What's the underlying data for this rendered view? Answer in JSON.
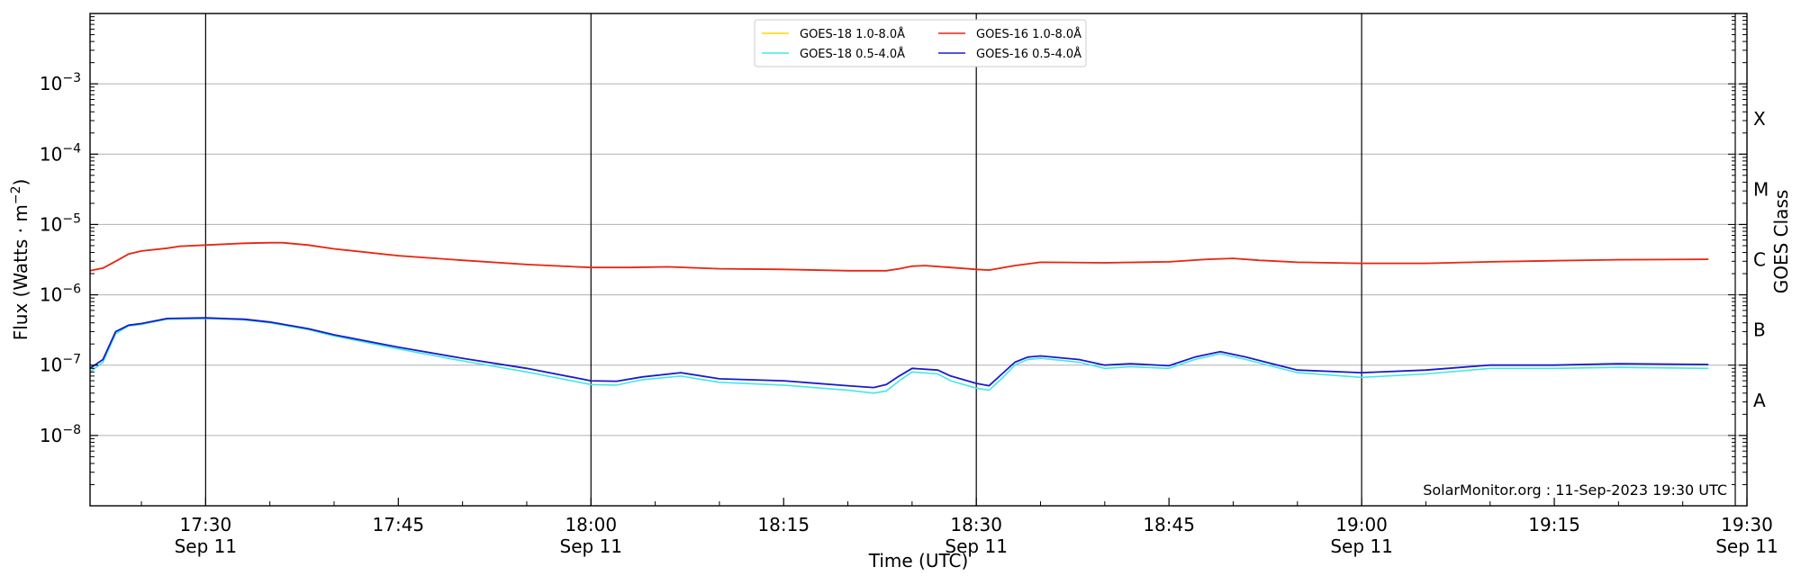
{
  "chart_data": {
    "type": "line",
    "xlabel": "Time (UTC)",
    "ylabel_main": "Flux (Watts · m",
    "ylabel_sup": "−2",
    "ylabel_close": ")",
    "ylabel_right": "GOES Class",
    "yscale": "log",
    "xlim": [
      "17:21",
      "19:30"
    ],
    "ylim_exp": [
      -9,
      -2
    ],
    "grid": "horizontal",
    "legend_position": "top-center",
    "annotation": "SolarMonitor.org : 11-Sep-2023 19:30 UTC",
    "x_ticks": [
      {
        "time": "17:30",
        "label": "17:30",
        "sub": "Sep 11"
      },
      {
        "time": "17:45",
        "label": "17:45",
        "sub": ""
      },
      {
        "time": "18:00",
        "label": "18:00",
        "sub": "Sep 11"
      },
      {
        "time": "18:15",
        "label": "18:15",
        "sub": ""
      },
      {
        "time": "18:30",
        "label": "18:30",
        "sub": "Sep 11"
      },
      {
        "time": "18:45",
        "label": "18:45",
        "sub": ""
      },
      {
        "time": "19:00",
        "label": "19:00",
        "sub": "Sep 11"
      },
      {
        "time": "19:15",
        "label": "19:15",
        "sub": ""
      },
      {
        "time": "19:30",
        "label": "19:30",
        "sub": "Sep 11"
      }
    ],
    "vertical_lines": [
      "17:30",
      "18:00",
      "18:30",
      "19:00"
    ],
    "y_ticks": [
      {
        "exp": -3,
        "base": "10",
        "sup": "−3"
      },
      {
        "exp": -4,
        "base": "10",
        "sup": "−4"
      },
      {
        "exp": -5,
        "base": "10",
        "sup": "−5"
      },
      {
        "exp": -6,
        "base": "10",
        "sup": "−6"
      },
      {
        "exp": -7,
        "base": "10",
        "sup": "−7"
      },
      {
        "exp": -8,
        "base": "10",
        "sup": "−8"
      }
    ],
    "goes_classes": [
      {
        "label": "X",
        "exp": -3.5
      },
      {
        "label": "M",
        "exp": -4.5
      },
      {
        "label": "C",
        "exp": -5.5
      },
      {
        "label": "B",
        "exp": -6.5
      },
      {
        "label": "A",
        "exp": -7.5
      }
    ],
    "series": [
      {
        "name": "GOES-18 1.0-8.0Å",
        "color": "#FFD700",
        "points": [
          [
            "17:21",
            2.2e-06
          ],
          [
            "17:22",
            2.4e-06
          ],
          [
            "17:23",
            3e-06
          ],
          [
            "17:24",
            3.8e-06
          ],
          [
            "17:25",
            4.2e-06
          ],
          [
            "17:27",
            4.6e-06
          ],
          [
            "17:28",
            4.9e-06
          ],
          [
            "17:30",
            5.1e-06
          ],
          [
            "17:33",
            5.4e-06
          ],
          [
            "17:35",
            5.5e-06
          ],
          [
            "17:36",
            5.5e-06
          ],
          [
            "17:38",
            5.1e-06
          ],
          [
            "17:40",
            4.5e-06
          ],
          [
            "17:45",
            3.6e-06
          ],
          [
            "17:50",
            3.1e-06
          ],
          [
            "17:55",
            2.7e-06
          ],
          [
            "18:00",
            2.45e-06
          ],
          [
            "18:03",
            2.45e-06
          ],
          [
            "18:06",
            2.5e-06
          ],
          [
            "18:10",
            2.35e-06
          ],
          [
            "18:15",
            2.3e-06
          ],
          [
            "18:20",
            2.2e-06
          ],
          [
            "18:23",
            2.2e-06
          ],
          [
            "18:24",
            2.35e-06
          ],
          [
            "18:25",
            2.55e-06
          ],
          [
            "18:26",
            2.6e-06
          ],
          [
            "18:28",
            2.45e-06
          ],
          [
            "18:30",
            2.3e-06
          ],
          [
            "18:31",
            2.25e-06
          ],
          [
            "18:33",
            2.6e-06
          ],
          [
            "18:35",
            2.9e-06
          ],
          [
            "18:40",
            2.85e-06
          ],
          [
            "18:45",
            2.95e-06
          ],
          [
            "18:48",
            3.2e-06
          ],
          [
            "18:50",
            3.3e-06
          ],
          [
            "18:52",
            3.1e-06
          ],
          [
            "18:55",
            2.9e-06
          ],
          [
            "19:00",
            2.8e-06
          ],
          [
            "19:05",
            2.8e-06
          ],
          [
            "19:10",
            2.95e-06
          ],
          [
            "19:15",
            3.05e-06
          ],
          [
            "19:20",
            3.15e-06
          ],
          [
            "19:27",
            3.2e-06
          ]
        ]
      },
      {
        "name": "GOES-16 1.0-8.0Å",
        "color": "#E8251B",
        "points": [
          [
            "17:21",
            2.2e-06
          ],
          [
            "17:22",
            2.4e-06
          ],
          [
            "17:23",
            3e-06
          ],
          [
            "17:24",
            3.8e-06
          ],
          [
            "17:25",
            4.2e-06
          ],
          [
            "17:27",
            4.6e-06
          ],
          [
            "17:28",
            4.9e-06
          ],
          [
            "17:30",
            5.1e-06
          ],
          [
            "17:33",
            5.4e-06
          ],
          [
            "17:35",
            5.5e-06
          ],
          [
            "17:36",
            5.5e-06
          ],
          [
            "17:38",
            5.1e-06
          ],
          [
            "17:40",
            4.5e-06
          ],
          [
            "17:45",
            3.6e-06
          ],
          [
            "17:50",
            3.1e-06
          ],
          [
            "17:55",
            2.7e-06
          ],
          [
            "18:00",
            2.45e-06
          ],
          [
            "18:03",
            2.45e-06
          ],
          [
            "18:06",
            2.5e-06
          ],
          [
            "18:10",
            2.35e-06
          ],
          [
            "18:15",
            2.3e-06
          ],
          [
            "18:20",
            2.2e-06
          ],
          [
            "18:23",
            2.2e-06
          ],
          [
            "18:24",
            2.35e-06
          ],
          [
            "18:25",
            2.55e-06
          ],
          [
            "18:26",
            2.6e-06
          ],
          [
            "18:28",
            2.45e-06
          ],
          [
            "18:30",
            2.3e-06
          ],
          [
            "18:31",
            2.25e-06
          ],
          [
            "18:33",
            2.6e-06
          ],
          [
            "18:35",
            2.9e-06
          ],
          [
            "18:40",
            2.85e-06
          ],
          [
            "18:45",
            2.95e-06
          ],
          [
            "18:48",
            3.2e-06
          ],
          [
            "18:50",
            3.3e-06
          ],
          [
            "18:52",
            3.1e-06
          ],
          [
            "18:55",
            2.9e-06
          ],
          [
            "19:00",
            2.8e-06
          ],
          [
            "19:05",
            2.8e-06
          ],
          [
            "19:10",
            2.95e-06
          ],
          [
            "19:15",
            3.05e-06
          ],
          [
            "19:20",
            3.15e-06
          ],
          [
            "19:27",
            3.2e-06
          ]
        ]
      },
      {
        "name": "GOES-18 0.5-4.0Å",
        "color": "#40E8E8",
        "points": [
          [
            "17:21",
            8e-08
          ],
          [
            "17:22",
            1.1e-07
          ],
          [
            "17:23",
            2.8e-07
          ],
          [
            "17:24",
            3.6e-07
          ],
          [
            "17:25",
            3.8e-07
          ],
          [
            "17:27",
            4.5e-07
          ],
          [
            "17:30",
            4.6e-07
          ],
          [
            "17:33",
            4.4e-07
          ],
          [
            "17:35",
            4e-07
          ],
          [
            "17:38",
            3.2e-07
          ],
          [
            "17:40",
            2.6e-07
          ],
          [
            "17:45",
            1.7e-07
          ],
          [
            "17:50",
            1.15e-07
          ],
          [
            "17:55",
            8e-08
          ],
          [
            "18:00",
            5.3e-08
          ],
          [
            "18:02",
            5.2e-08
          ],
          [
            "18:04",
            6.2e-08
          ],
          [
            "18:07",
            7e-08
          ],
          [
            "18:10",
            5.7e-08
          ],
          [
            "18:15",
            5.2e-08
          ],
          [
            "18:20",
            4.4e-08
          ],
          [
            "18:22",
            4e-08
          ],
          [
            "18:23",
            4.3e-08
          ],
          [
            "18:24",
            6e-08
          ],
          [
            "18:25",
            8e-08
          ],
          [
            "18:27",
            7.5e-08
          ],
          [
            "18:28",
            6e-08
          ],
          [
            "18:30",
            4.7e-08
          ],
          [
            "18:31",
            4.4e-08
          ],
          [
            "18:32",
            6.5e-08
          ],
          [
            "18:33",
            1e-07
          ],
          [
            "18:34",
            1.2e-07
          ],
          [
            "18:35",
            1.25e-07
          ],
          [
            "18:38",
            1.1e-07
          ],
          [
            "18:40",
            9e-08
          ],
          [
            "18:42",
            9.5e-08
          ],
          [
            "18:45",
            9e-08
          ],
          [
            "18:47",
            1.2e-07
          ],
          [
            "18:49",
            1.45e-07
          ],
          [
            "18:51",
            1.2e-07
          ],
          [
            "18:55",
            7.8e-08
          ],
          [
            "19:00",
            6.7e-08
          ],
          [
            "19:05",
            7.5e-08
          ],
          [
            "19:10",
            9e-08
          ],
          [
            "19:15",
            9e-08
          ],
          [
            "19:20",
            9.3e-08
          ],
          [
            "19:27",
            9e-08
          ]
        ]
      },
      {
        "name": "GOES-16 0.5-4.0Å",
        "color": "#1A1ACC",
        "points": [
          [
            "17:21",
            9e-08
          ],
          [
            "17:22",
            1.2e-07
          ],
          [
            "17:23",
            3e-07
          ],
          [
            "17:24",
            3.7e-07
          ],
          [
            "17:25",
            3.9e-07
          ],
          [
            "17:27",
            4.6e-07
          ],
          [
            "17:30",
            4.7e-07
          ],
          [
            "17:33",
            4.5e-07
          ],
          [
            "17:35",
            4.1e-07
          ],
          [
            "17:38",
            3.3e-07
          ],
          [
            "17:40",
            2.7e-07
          ],
          [
            "17:45",
            1.8e-07
          ],
          [
            "17:50",
            1.25e-07
          ],
          [
            "17:55",
            9e-08
          ],
          [
            "18:00",
            6e-08
          ],
          [
            "18:02",
            5.9e-08
          ],
          [
            "18:04",
            6.8e-08
          ],
          [
            "18:07",
            7.8e-08
          ],
          [
            "18:10",
            6.4e-08
          ],
          [
            "18:15",
            6e-08
          ],
          [
            "18:20",
            5.1e-08
          ],
          [
            "18:22",
            4.8e-08
          ],
          [
            "18:23",
            5.3e-08
          ],
          [
            "18:24",
            7e-08
          ],
          [
            "18:25",
            9e-08
          ],
          [
            "18:27",
            8.5e-08
          ],
          [
            "18:28",
            7e-08
          ],
          [
            "18:30",
            5.5e-08
          ],
          [
            "18:31",
            5.1e-08
          ],
          [
            "18:32",
            7.5e-08
          ],
          [
            "18:33",
            1.1e-07
          ],
          [
            "18:34",
            1.3e-07
          ],
          [
            "18:35",
            1.35e-07
          ],
          [
            "18:38",
            1.2e-07
          ],
          [
            "18:40",
            1e-07
          ],
          [
            "18:42",
            1.05e-07
          ],
          [
            "18:45",
            9.8e-08
          ],
          [
            "18:47",
            1.3e-07
          ],
          [
            "18:49",
            1.55e-07
          ],
          [
            "18:51",
            1.3e-07
          ],
          [
            "18:55",
            8.5e-08
          ],
          [
            "19:00",
            7.8e-08
          ],
          [
            "19:05",
            8.5e-08
          ],
          [
            "19:10",
            1e-07
          ],
          [
            "19:15",
            1e-07
          ],
          [
            "19:20",
            1.05e-07
          ],
          [
            "19:27",
            1.02e-07
          ]
        ]
      }
    ],
    "legend_order": [
      0,
      2,
      1,
      3
    ]
  }
}
